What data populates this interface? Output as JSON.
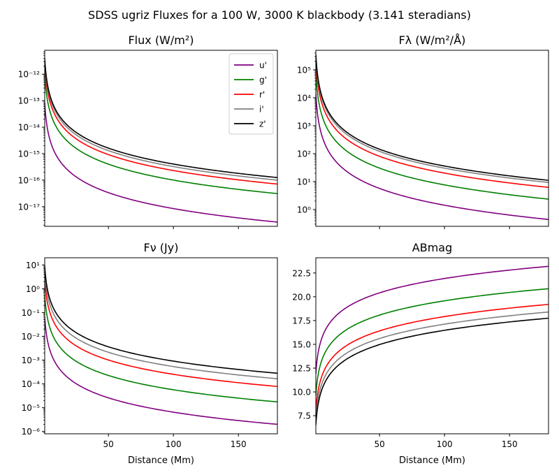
{
  "figure": {
    "suptitle": "SDSS ugriz Fluxes for a 100 W, 3000 K blackbody (3.141 steradians)"
  },
  "colors": {
    "u": "#800080",
    "g": "#008000",
    "r": "#ff0000",
    "i": "#808080",
    "z": "#000000"
  },
  "chart_data": [
    {
      "id": "flux",
      "type": "line",
      "title": "Flux (W/m²)",
      "xlabel": "",
      "ylabel": "",
      "yscale": "log",
      "xlim": [
        1,
        180
      ],
      "ylim": [
        1.8e-18,
        8e-12
      ],
      "xticks": [
        50,
        100,
        150
      ],
      "show_xticklabels": false,
      "yticks": [
        1e-17,
        1e-16,
        1e-15,
        1e-14,
        1e-13,
        1e-12
      ],
      "ytick_labels": [
        "10⁻¹⁷",
        "10⁻¹⁶",
        "10⁻¹⁵",
        "10⁻¹⁴",
        "10⁻¹³",
        "10⁻¹²"
      ],
      "legend": "top-right",
      "curve_model": "y = k / x²",
      "series": [
        {
          "name": "u'",
          "color_key": "u",
          "x": [
            1,
            180
          ],
          "y": [
            8.4e-14,
            2.6e-18
          ]
        },
        {
          "name": "g'",
          "color_key": "g",
          "x": [
            1,
            180
          ],
          "y": [
            1e-12,
            3.1e-17
          ]
        },
        {
          "name": "r'",
          "color_key": "r",
          "x": [
            1,
            180
          ],
          "y": [
            2.3e-12,
            7.1e-17
          ]
        },
        {
          "name": "i'",
          "color_key": "i",
          "x": [
            1,
            180
          ],
          "y": [
            3.3e-12,
            1e-16
          ]
        },
        {
          "name": "z'",
          "color_key": "z",
          "x": [
            1,
            180
          ],
          "y": [
            4e-12,
            1.25e-16
          ]
        }
      ]
    },
    {
      "id": "flam",
      "type": "line",
      "title": "Fλ (W/m²/Å)",
      "xlabel": "",
      "ylabel": "",
      "yscale": "log",
      "xlim": [
        1,
        180
      ],
      "ylim": [
        0.25,
        500000.0
      ],
      "xticks": [
        50,
        100,
        150
      ],
      "show_xticklabels": false,
      "yticks": [
        1,
        10,
        100,
        1000,
        10000,
        100000
      ],
      "ytick_labels": [
        "10⁰",
        "10¹",
        "10²",
        "10³",
        "10⁴",
        "10⁵"
      ],
      "curve_model": "y = k / x²",
      "series": [
        {
          "name": "u'",
          "color_key": "u",
          "x": [
            1,
            180
          ],
          "y": [
            14000,
            0.44
          ]
        },
        {
          "name": "g'",
          "color_key": "g",
          "x": [
            1,
            180
          ],
          "y": [
            75000,
            2.35
          ]
        },
        {
          "name": "r'",
          "color_key": "r",
          "x": [
            1,
            180
          ],
          "y": [
            200000,
            6.2
          ]
        },
        {
          "name": "i'",
          "color_key": "i",
          "x": [
            1,
            180
          ],
          "y": [
            300000,
            9.3
          ]
        },
        {
          "name": "z'",
          "color_key": "z",
          "x": [
            1,
            180
          ],
          "y": [
            360000,
            11.1
          ]
        }
      ]
    },
    {
      "id": "fnu",
      "type": "line",
      "title": "Fν (Jy)",
      "xlabel": "Distance (Mm)",
      "ylabel": "",
      "yscale": "log",
      "xlim": [
        1,
        180
      ],
      "ylim": [
        8e-07,
        20
      ],
      "xticks": [
        50,
        100,
        150
      ],
      "show_xticklabels": true,
      "yticks": [
        1e-06,
        1e-05,
        0.0001,
        0.001,
        0.01,
        0.1,
        1,
        10
      ],
      "ytick_labels": [
        "10⁻⁶",
        "10⁻⁵",
        "10⁻⁴",
        "10⁻³",
        "10⁻²",
        "10⁻¹",
        "10⁰",
        "10¹"
      ],
      "curve_model": "y = k / x²",
      "series": [
        {
          "name": "u'",
          "color_key": "u",
          "x": [
            1,
            180
          ],
          "y": [
            0.065,
            2e-06
          ]
        },
        {
          "name": "g'",
          "color_key": "g",
          "x": [
            1,
            180
          ],
          "y": [
            0.56,
            1.75e-05
          ]
        },
        {
          "name": "r'",
          "color_key": "r",
          "x": [
            1,
            180
          ],
          "y": [
            2.5,
            7.8e-05
          ]
        },
        {
          "name": "i'",
          "color_key": "i",
          "x": [
            1,
            180
          ],
          "y": [
            5.3,
            0.000165
          ]
        },
        {
          "name": "z'",
          "color_key": "z",
          "x": [
            1,
            180
          ],
          "y": [
            9.0,
            0.00028
          ]
        }
      ]
    },
    {
      "id": "abmag",
      "type": "line",
      "title": "ABmag",
      "xlabel": "Distance (Mm)",
      "ylabel": "",
      "yscale": "linear",
      "xlim": [
        1,
        180
      ],
      "ylim": [
        5.6,
        24.1
      ],
      "xticks": [
        50,
        100,
        150
      ],
      "show_xticklabels": true,
      "yticks": [
        7.5,
        10.0,
        12.5,
        15.0,
        17.5,
        20.0,
        22.5
      ],
      "ytick_labels": [
        "7.5",
        "10.0",
        "12.5",
        "15.0",
        "17.5",
        "20.0",
        "22.5"
      ],
      "curve_model": "y = m0 + 5·log10(x)",
      "series": [
        {
          "name": "u'",
          "color_key": "u",
          "x": [
            1,
            180
          ],
          "y": [
            11.9,
            23.2
          ]
        },
        {
          "name": "g'",
          "color_key": "g",
          "x": [
            1,
            180
          ],
          "y": [
            9.6,
            20.85
          ]
        },
        {
          "name": "r'",
          "color_key": "r",
          "x": [
            1,
            180
          ],
          "y": [
            7.9,
            19.2
          ]
        },
        {
          "name": "i'",
          "color_key": "i",
          "x": [
            1,
            180
          ],
          "y": [
            7.1,
            18.4
          ]
        },
        {
          "name": "z'",
          "color_key": "z",
          "x": [
            1,
            180
          ],
          "y": [
            6.5,
            17.75
          ]
        }
      ]
    }
  ]
}
